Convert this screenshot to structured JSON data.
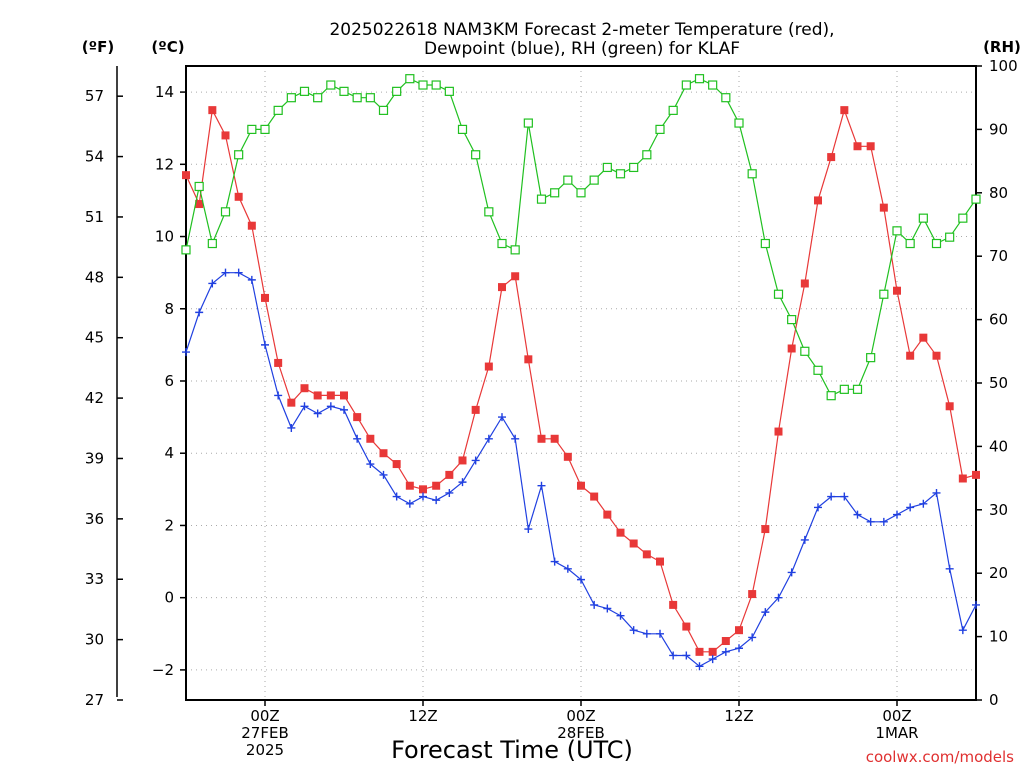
{
  "chart_data": {
    "type": "line",
    "title_lines": [
      "2025022618 NAM3KM Forecast 2-meter Temperature (red),",
      "Dewpoint (blue), RH (green) for KLAF"
    ],
    "xlabel": "Forecast Time (UTC)",
    "credit": "coolwx.com/models",
    "unit_labels": {
      "fahrenheit": "(ºF)",
      "celsius": "(ºC)",
      "rh": "(RH)"
    },
    "x_range_hours": [
      0,
      60
    ],
    "celsius_axis": {
      "range": [
        -2.8333,
        14.7222
      ],
      "ticks": [
        -2,
        0,
        2,
        4,
        6,
        8,
        10,
        12,
        14
      ]
    },
    "fahrenheit_axis": {
      "range": [
        27,
        58.5
      ],
      "ticks": [
        27,
        30,
        33,
        36,
        39,
        42,
        45,
        48,
        51,
        54,
        57
      ]
    },
    "rh_axis": {
      "range": [
        0,
        100
      ],
      "ticks": [
        0,
        10,
        20,
        30,
        40,
        50,
        60,
        70,
        80,
        90,
        100
      ]
    },
    "x_ticks": [
      {
        "hour": 6,
        "lines": [
          "00Z",
          "27FEB",
          "2025"
        ]
      },
      {
        "hour": 18,
        "lines": [
          "12Z"
        ]
      },
      {
        "hour": 30,
        "lines": [
          "00Z",
          "28FEB"
        ]
      },
      {
        "hour": 42,
        "lines": [
          "12Z"
        ]
      },
      {
        "hour": 54,
        "lines": [
          "00Z",
          "1MAR"
        ]
      }
    ],
    "grid": true,
    "series": [
      {
        "name": "Temperature",
        "axis": "celsius",
        "color": "#e83838",
        "marker": "filled-square",
        "values": [
          11.7,
          10.9,
          13.5,
          12.8,
          11.1,
          10.3,
          8.3,
          6.5,
          5.4,
          5.8,
          5.6,
          5.6,
          5.6,
          5.0,
          4.4,
          4.0,
          3.7,
          3.1,
          3.0,
          3.1,
          3.4,
          3.8,
          5.2,
          6.4,
          8.6,
          8.9,
          6.6,
          4.4,
          4.4,
          3.9,
          3.1,
          2.8,
          2.3,
          1.8,
          1.5,
          1.2,
          1.0,
          -0.2,
          -0.8,
          -1.5,
          -1.5,
          -1.2,
          -0.9,
          0.1,
          1.9,
          4.6,
          6.9,
          8.7,
          11.0,
          12.2,
          13.5,
          12.5,
          12.5,
          10.8,
          8.5,
          6.7,
          7.2,
          6.7,
          5.3,
          3.3,
          3.4
        ]
      },
      {
        "name": "Dewpoint",
        "axis": "celsius",
        "color": "#2040e0",
        "marker": "plus",
        "values": [
          6.8,
          7.9,
          8.7,
          9.0,
          9.0,
          8.8,
          7.0,
          5.6,
          4.7,
          5.3,
          5.1,
          5.3,
          5.2,
          4.4,
          3.7,
          3.4,
          2.8,
          2.6,
          2.8,
          2.7,
          2.9,
          3.2,
          3.8,
          4.4,
          5.0,
          4.4,
          1.9,
          3.1,
          1.0,
          0.8,
          0.5,
          -0.2,
          -0.3,
          -0.5,
          -0.9,
          -1.0,
          -1.0,
          -1.6,
          -1.6,
          -1.9,
          -1.7,
          -1.5,
          -1.4,
          -1.1,
          -0.4,
          0.0,
          0.7,
          1.6,
          2.5,
          2.8,
          2.8,
          2.3,
          2.1,
          2.1,
          2.3,
          2.5,
          2.6,
          2.9,
          0.8,
          -0.9,
          -0.2
        ]
      },
      {
        "name": "RH",
        "axis": "rh",
        "color": "#20c020",
        "marker": "open-square",
        "values": [
          71,
          81,
          72,
          77,
          86,
          90,
          90,
          93,
          95,
          96,
          95,
          97,
          96,
          95,
          95,
          93,
          96,
          98,
          97,
          97,
          96,
          90,
          86,
          77,
          72,
          71,
          91,
          79,
          80,
          82,
          80,
          82,
          84,
          83,
          84,
          86,
          90,
          93,
          97,
          98,
          97,
          95,
          91,
          83,
          72,
          64,
          60,
          55,
          52,
          48,
          49,
          49,
          54,
          64,
          74,
          72,
          76,
          72,
          73,
          76,
          79
        ]
      }
    ]
  }
}
